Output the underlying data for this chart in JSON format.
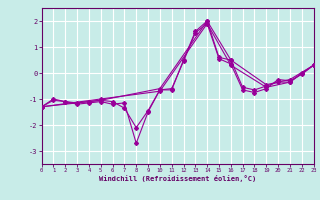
{
  "title": "",
  "xlabel": "Windchill (Refroidissement éolien,°C)",
  "ylabel": "",
  "background_color": "#c8ece8",
  "grid_color": "#ffffff",
  "line_color": "#990099",
  "xlim": [
    0,
    23
  ],
  "ylim": [
    -3.5,
    2.5
  ],
  "yticks": [
    -3,
    -2,
    -1,
    0,
    1,
    2
  ],
  "xticks": [
    0,
    1,
    2,
    3,
    4,
    5,
    6,
    7,
    8,
    9,
    10,
    11,
    12,
    13,
    14,
    15,
    16,
    17,
    18,
    19,
    20,
    21,
    22,
    23
  ],
  "series": [
    [
      [
        0,
        -1.3
      ],
      [
        1,
        -1.0
      ],
      [
        2,
        -1.1
      ],
      [
        3,
        -1.2
      ],
      [
        4,
        -1.15
      ],
      [
        5,
        -1.1
      ],
      [
        6,
        -1.2
      ],
      [
        7,
        -1.15
      ],
      [
        8,
        -2.7
      ],
      [
        9,
        -1.5
      ],
      [
        10,
        -0.65
      ],
      [
        11,
        -0.6
      ],
      [
        12,
        0.45
      ],
      [
        13,
        1.55
      ],
      [
        14,
        1.9
      ],
      [
        15,
        0.55
      ],
      [
        16,
        0.35
      ],
      [
        17,
        -0.65
      ],
      [
        18,
        -0.75
      ],
      [
        19,
        -0.6
      ],
      [
        20,
        -0.25
      ],
      [
        21,
        -0.3
      ],
      [
        22,
        -0.05
      ],
      [
        23,
        0.3
      ]
    ],
    [
      [
        0,
        -1.3
      ],
      [
        1,
        -1.05
      ],
      [
        2,
        -1.1
      ],
      [
        3,
        -1.15
      ],
      [
        4,
        -1.1
      ],
      [
        5,
        -1.05
      ],
      [
        6,
        -1.1
      ],
      [
        7,
        -1.35
      ],
      [
        8,
        -2.1
      ],
      [
        9,
        -1.45
      ],
      [
        10,
        -0.65
      ],
      [
        11,
        -0.65
      ],
      [
        12,
        0.5
      ],
      [
        13,
        1.6
      ],
      [
        14,
        2.0
      ],
      [
        15,
        0.6
      ],
      [
        16,
        0.5
      ],
      [
        17,
        -0.55
      ],
      [
        18,
        -0.65
      ],
      [
        19,
        -0.5
      ],
      [
        20,
        -0.35
      ],
      [
        21,
        -0.35
      ],
      [
        22,
        -0.0
      ],
      [
        23,
        0.3
      ]
    ],
    [
      [
        0,
        -1.3
      ],
      [
        5,
        -1.0
      ],
      [
        10,
        -0.7
      ],
      [
        14,
        1.9
      ],
      [
        16,
        0.3
      ],
      [
        19,
        -0.55
      ],
      [
        21,
        -0.35
      ],
      [
        23,
        0.3
      ]
    ],
    [
      [
        0,
        -1.3
      ],
      [
        5,
        -1.05
      ],
      [
        10,
        -0.6
      ],
      [
        14,
        2.0
      ],
      [
        16,
        0.5
      ],
      [
        19,
        -0.45
      ],
      [
        21,
        -0.25
      ],
      [
        23,
        0.3
      ]
    ]
  ],
  "figsize": [
    3.2,
    2.0
  ],
  "dpi": 100
}
